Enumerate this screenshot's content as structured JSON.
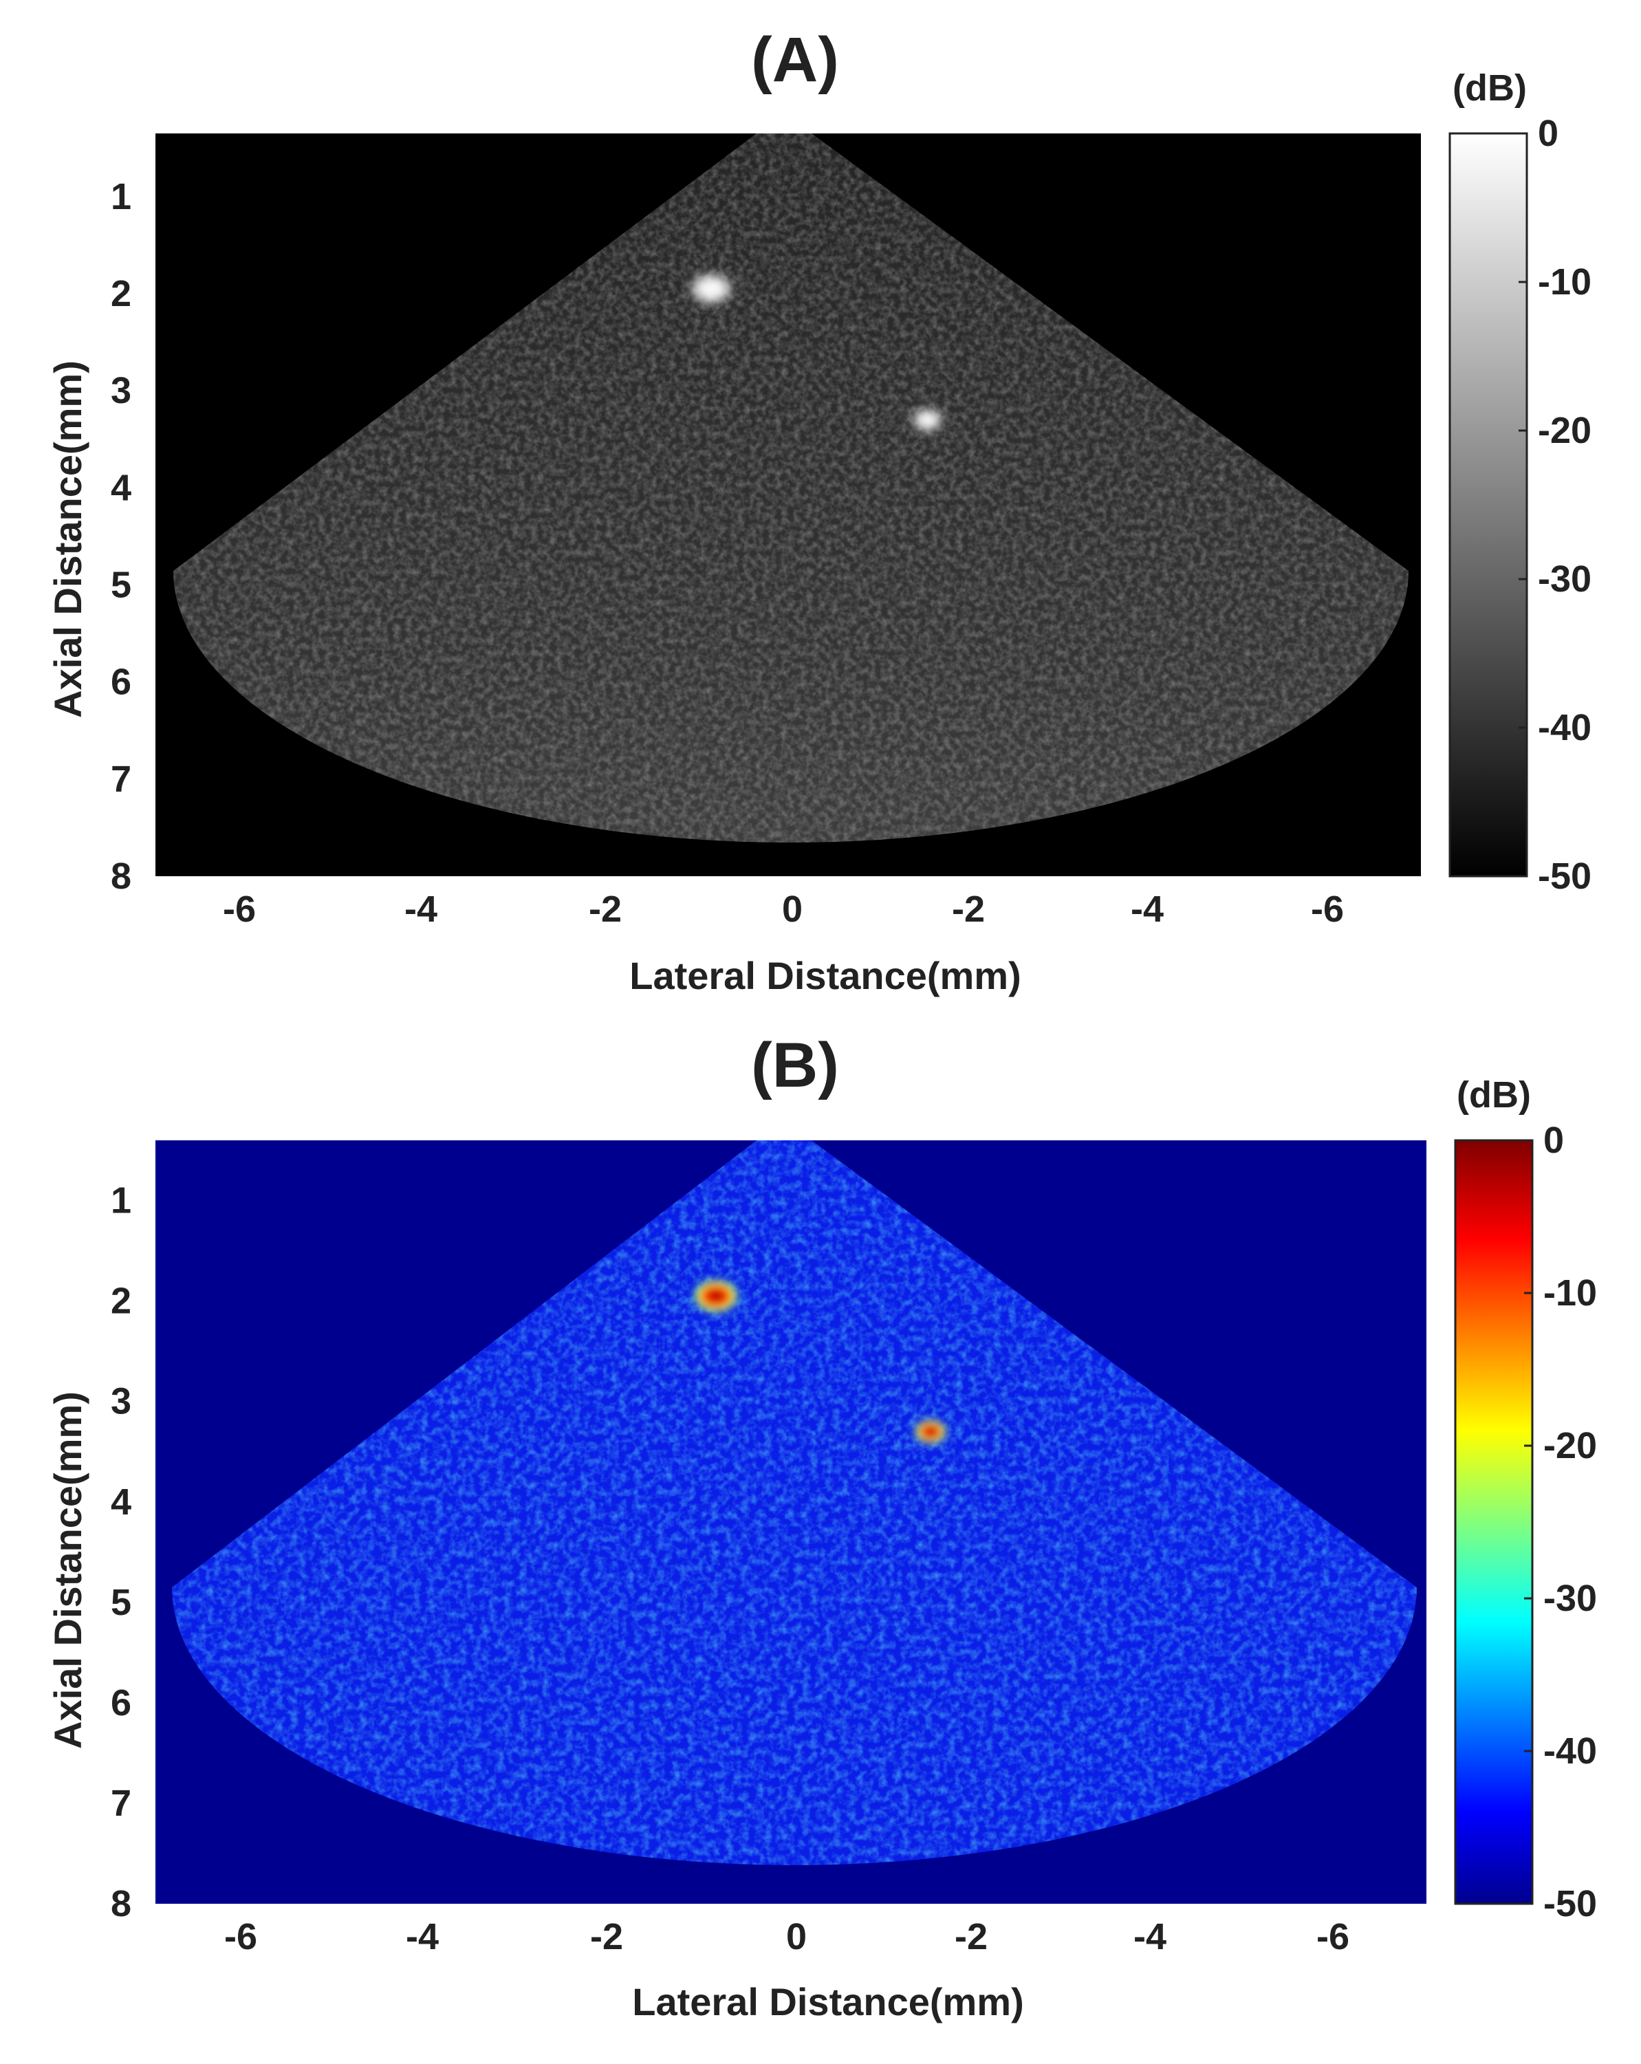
{
  "chart_data": [
    {
      "type": "heatmap",
      "title": "(A)",
      "xlabel": "Lateral Distance(mm)",
      "ylabel": "Axial Distance(mm)",
      "xticks": [
        "-6",
        "-4",
        "-2",
        "0",
        "-2",
        "-4",
        "-6"
      ],
      "yticks": [
        "1",
        "2",
        "3",
        "4",
        "5",
        "6",
        "7",
        "8"
      ],
      "colorbar": {
        "unit": "(dB)",
        "ticks": [
          "0",
          "-10",
          "-20",
          "-30",
          "-40",
          "-50"
        ],
        "range": [
          -50,
          0
        ],
        "colormap": "gray",
        "colors": [
          "#000000",
          "#ffffff"
        ]
      },
      "background_color": "#000000",
      "bright_spots": [
        {
          "lateral_mm": -0.9,
          "axial_mm": 1.95,
          "value_db": 0
        },
        {
          "lateral_mm": 1.5,
          "axial_mm": 3.3,
          "value_db": -3
        }
      ]
    },
    {
      "type": "heatmap",
      "title": "(B)",
      "xlabel": "Lateral Distance(mm)",
      "ylabel": "Axial Distance(mm)",
      "xticks": [
        "-6",
        "-4",
        "-2",
        "0",
        "-2",
        "-4",
        "-6"
      ],
      "yticks": [
        "1",
        "2",
        "3",
        "4",
        "5",
        "6",
        "7",
        "8"
      ],
      "colorbar": {
        "unit": "(dB)",
        "ticks": [
          "0",
          "-10",
          "-20",
          "-30",
          "-40",
          "-50"
        ],
        "range": [
          -50,
          0
        ],
        "colormap": "jet",
        "colors": [
          "#00008f",
          "#0000ff",
          "#00ffff",
          "#ffff00",
          "#ff0000",
          "#800000"
        ]
      },
      "background_color": "#00008f",
      "bright_spots": [
        {
          "lateral_mm": -0.9,
          "axial_mm": 1.95,
          "value_db": 0
        },
        {
          "lateral_mm": 1.5,
          "axial_mm": 3.3,
          "value_db": -3
        }
      ]
    }
  ]
}
